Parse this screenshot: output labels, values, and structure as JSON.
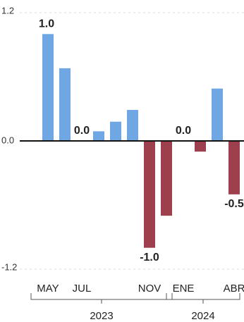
{
  "chart_data": {
    "type": "bar",
    "categories": [
      "MAY",
      null,
      "JUL",
      null,
      null,
      null,
      "NOV",
      null,
      "ENE",
      null,
      null,
      "ABR"
    ],
    "values": [
      1.0,
      0.68,
      0,
      0.09,
      0.18,
      0.29,
      -1.0,
      -0.7,
      0,
      -0.1,
      0.49,
      -0.5
    ],
    "value_labels": [
      "1.0",
      null,
      "0.0",
      null,
      null,
      null,
      "-1.0",
      null,
      "0.0",
      null,
      null,
      "-0.5"
    ],
    "positive_color": "#6ea7e4",
    "negative_color": "#9e3f4d",
    "ylim": [
      -1.2,
      1.2
    ],
    "yticks": [
      -1.2,
      {
        "value": 0,
        "label": "0.0"
      },
      1.2
    ],
    "grid": true,
    "groups": [
      {
        "label": "2023",
        "count": 8
      },
      {
        "label": "2024",
        "count": 4
      }
    ]
  }
}
